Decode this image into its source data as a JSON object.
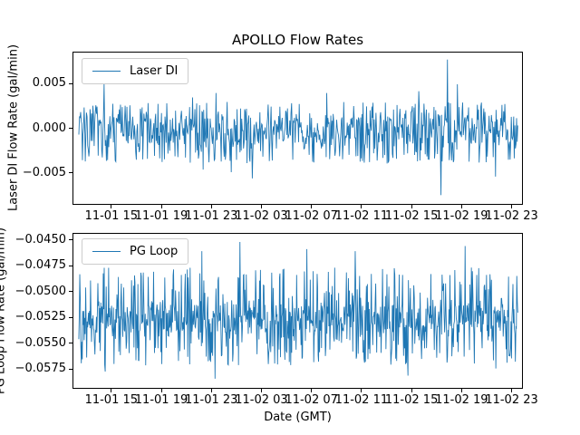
{
  "figure": {
    "title": "APOLLO Flow Rates",
    "background_color": "#ffffff",
    "text_color": "#000000",
    "accent_color": "#1f77b4"
  },
  "chart_data": [
    {
      "type": "line",
      "subplot": "top",
      "title": "APOLLO Flow Rates",
      "ylabel": "Laser DI Flow Rate (gal/min)",
      "xlabel": "",
      "grid": false,
      "legend": {
        "position": "upper left",
        "entries": [
          "Laser DI"
        ]
      },
      "ylim": [
        -0.0086,
        0.0086
      ],
      "xlim_hours": [
        11.9,
        47.9
      ],
      "y_ticks": [
        {
          "value": 0.005,
          "label": "0.005"
        },
        {
          "value": 0.0,
          "label": "0.000"
        },
        {
          "value": -0.005,
          "label": "−0.005"
        }
      ],
      "x_ticks": [
        {
          "hours": 15,
          "label": "11-01 15"
        },
        {
          "hours": 19,
          "label": "11-01 19"
        },
        {
          "hours": 23,
          "label": "11-01 23"
        },
        {
          "hours": 27,
          "label": "11-02 03"
        },
        {
          "hours": 31,
          "label": "11-02 07"
        },
        {
          "hours": 35,
          "label": "11-02 11"
        },
        {
          "hours": 39,
          "label": "11-02 15"
        },
        {
          "hours": 43,
          "label": "11-02 19"
        },
        {
          "hours": 47,
          "label": "11-02 23"
        }
      ],
      "series": [
        {
          "name": "Laser DI",
          "color": "#1f77b4",
          "line_width": 0.9,
          "n_points": 750,
          "seed": 13,
          "x_data_hours": [
            12.2,
            47.7
          ],
          "core_band": [
            -0.0018,
            0.0012
          ],
          "p_up": 0.2,
          "up_range": [
            0.0012,
            0.003
          ],
          "p_down": 0.2,
          "down_range": [
            -0.004,
            -0.0018
          ],
          "spikes": [
            {
              "t": 0.057,
              "v": 0.005
            },
            {
              "t": 0.259,
              "v": 0.0035
            },
            {
              "t": 0.283,
              "v": -0.0047
            },
            {
              "t": 0.313,
              "v": 0.004
            },
            {
              "t": 0.347,
              "v": -0.005
            },
            {
              "t": 0.395,
              "v": -0.0057
            },
            {
              "t": 0.565,
              "v": 0.004
            },
            {
              "t": 0.774,
              "v": 0.0042
            },
            {
              "t": 0.825,
              "v": -0.0076
            },
            {
              "t": 0.84,
              "v": 0.0078
            },
            {
              "t": 0.863,
              "v": 0.005
            },
            {
              "t": 0.949,
              "v": -0.0055
            }
          ]
        }
      ]
    },
    {
      "type": "line",
      "subplot": "bottom",
      "title": "",
      "ylabel": "PG Loop Flow Rate (gal/min)",
      "ylabel_clipped": true,
      "xlabel": "Date (GMT)",
      "grid": false,
      "legend": {
        "position": "upper left",
        "entries": [
          "PG Loop"
        ]
      },
      "ylim": [
        -0.0594,
        -0.0443
      ],
      "xlim_hours": [
        11.9,
        47.9
      ],
      "y_ticks": [
        {
          "value": -0.045,
          "label": "−0.0450"
        },
        {
          "value": -0.0475,
          "label": "−0.0475"
        },
        {
          "value": -0.05,
          "label": "−0.0500"
        },
        {
          "value": -0.0525,
          "label": "−0.0525"
        },
        {
          "value": -0.055,
          "label": "−0.0550"
        },
        {
          "value": -0.0575,
          "label": "−0.0575"
        }
      ],
      "x_ticks": [
        {
          "hours": 15,
          "label": "11-01 15"
        },
        {
          "hours": 19,
          "label": "11-01 19"
        },
        {
          "hours": 23,
          "label": "11-01 23"
        },
        {
          "hours": 27,
          "label": "11-02 03"
        },
        {
          "hours": 31,
          "label": "11-02 07"
        },
        {
          "hours": 35,
          "label": "11-02 11"
        },
        {
          "hours": 39,
          "label": "11-02 15"
        },
        {
          "hours": 43,
          "label": "11-02 19"
        },
        {
          "hours": 47,
          "label": "11-02 23"
        }
      ],
      "series": [
        {
          "name": "PG Loop",
          "color": "#1f77b4",
          "line_width": 0.9,
          "n_points": 900,
          "seed": 99,
          "x_data_hours": [
            12.2,
            47.7
          ],
          "core_band": [
            -0.054,
            -0.0512
          ],
          "p_up": 0.22,
          "up_range": [
            -0.0512,
            -0.0476
          ],
          "p_down": 0.2,
          "down_range": [
            -0.0572,
            -0.054
          ],
          "spikes": [
            {
              "t": 0.06,
              "v": -0.0578
            },
            {
              "t": 0.28,
              "v": -0.046
            },
            {
              "t": 0.31,
              "v": -0.0585
            },
            {
              "t": 0.367,
              "v": -0.0451
            },
            {
              "t": 0.52,
              "v": -0.0458
            },
            {
              "t": 0.63,
              "v": -0.046
            },
            {
              "t": 0.75,
              "v": -0.0582
            },
            {
              "t": 0.88,
              "v": -0.0455
            },
            {
              "t": 0.95,
              "v": -0.0575
            }
          ]
        }
      ]
    }
  ]
}
